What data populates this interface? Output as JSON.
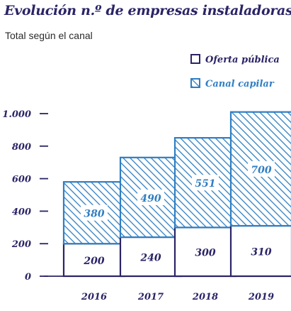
{
  "title": "Evolución n.º de empresas instaladoras",
  "subtitle": "Total según el canal",
  "colors": {
    "navy": "#2a2466",
    "blue": "#2f7fc3"
  },
  "chart_data": {
    "type": "bar",
    "stacked": true,
    "categories": [
      "2016",
      "2017",
      "2018",
      "2019"
    ],
    "series": [
      {
        "name": "Oferta pública",
        "values": [
          200,
          240,
          300,
          310
        ]
      },
      {
        "name": "Canal capilar",
        "values": [
          380,
          490,
          551,
          700
        ]
      }
    ],
    "ylim": [
      0,
      1000
    ],
    "yticks": [
      0,
      200,
      400,
      600,
      800,
      1000
    ],
    "ytick_labels": [
      "0",
      "200",
      "400",
      "600",
      "800",
      "1.000"
    ],
    "legend": "top-right",
    "grid": false
  }
}
